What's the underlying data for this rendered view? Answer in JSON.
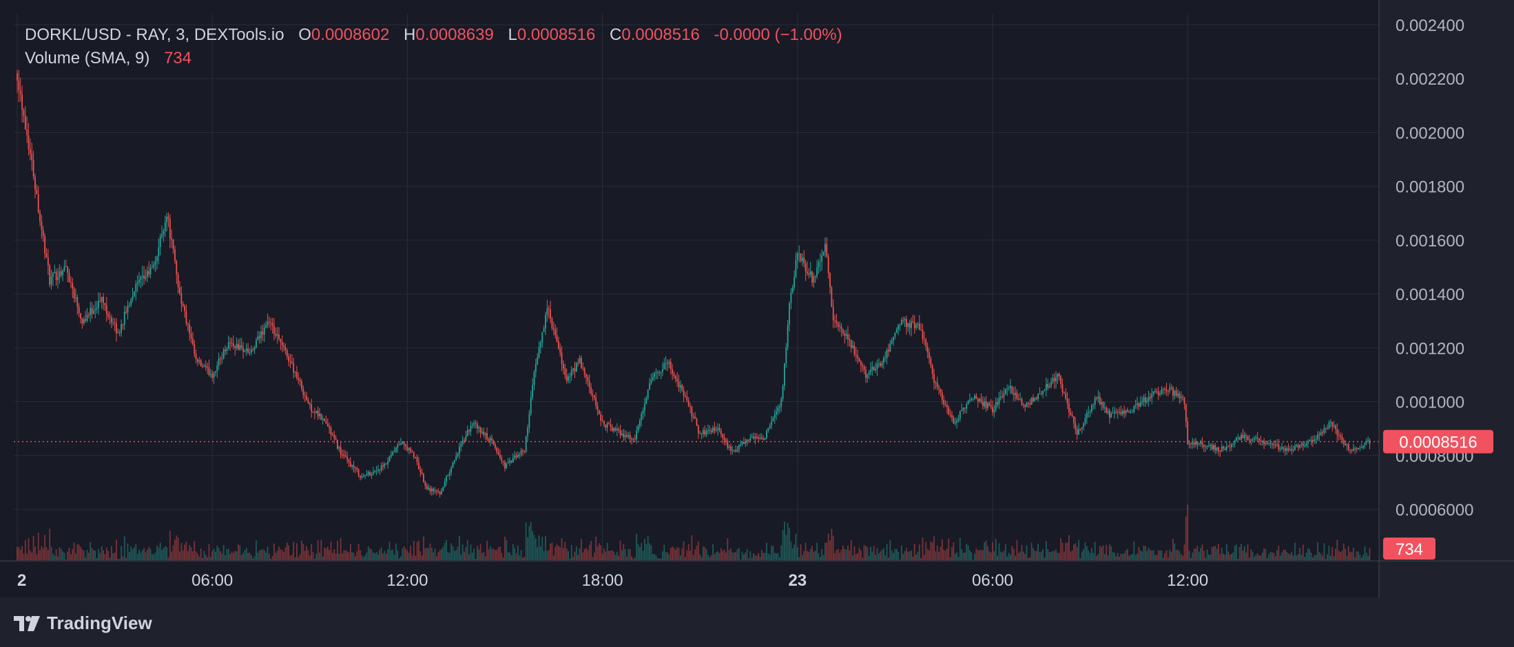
{
  "legend": {
    "symbol": "DORKL/USD - RAY, 3, DEXTools.io",
    "open_label": "O",
    "open": "0.0008602",
    "high_label": "H",
    "high": "0.0008639",
    "low_label": "L",
    "low": "0.0008516",
    "close_label": "C",
    "close": "0.0008516",
    "change": "-0.0000 (−1.00%)",
    "volume_label": "Volume (SMA, 9)",
    "volume_value": "734"
  },
  "branding": {
    "name": "TradingView"
  },
  "colors": {
    "background": "#1f222c",
    "plot_background": "#181a25",
    "up": "#26a69a",
    "down": "#ef5350",
    "grid": "#2a2e39",
    "text": "#d1d4dc",
    "accent": "#f2525f"
  },
  "chart_data": {
    "type": "candlestick",
    "title": "DORKL/USD - RAY, 3, DEXTools.io",
    "ylim": [
      0.0004,
      0.0025
    ],
    "y_ticks": [
      "0.002400",
      "0.002200",
      "0.002000",
      "0.001800",
      "0.001600",
      "0.001400",
      "0.001200",
      "0.001000",
      "0.0008000",
      "0.0006000"
    ],
    "y_tick_values": [
      0.0024,
      0.0022,
      0.002,
      0.0018,
      0.0016,
      0.0014,
      0.0012,
      0.001,
      0.0008,
      0.0006
    ],
    "x_ticks": [
      {
        "label": "2",
        "hours": 0,
        "bold": true
      },
      {
        "label": "06:00",
        "hours": 6
      },
      {
        "label": "12:00",
        "hours": 12
      },
      {
        "label": "18:00",
        "hours": 18
      },
      {
        "label": "23",
        "hours": 24,
        "bold": true
      },
      {
        "label": "06:00",
        "hours": 30
      },
      {
        "label": "12:00",
        "hours": 36
      }
    ],
    "last_price": 0.0008516,
    "last_price_label": "0.0008516",
    "last_volume_label": "734",
    "series_keyframes_hours": [
      0,
      0.1,
      0.5,
      0.7,
      1.0,
      1.5,
      2.0,
      2.6,
      3.1,
      3.6,
      4.2,
      4.6,
      5.0,
      5.5,
      6.0,
      6.5,
      7.2,
      7.7,
      8.4,
      9.0,
      9.5,
      10.0,
      10.6,
      11.3,
      11.8,
      12.2,
      12.6,
      13.0,
      13.5,
      14.0,
      14.6,
      15.0,
      15.6,
      15.9,
      16.3,
      16.9,
      17.3,
      18.0,
      18.6,
      19.0,
      19.5,
      20.0,
      20.6,
      21.0,
      21.5,
      22.0,
      22.5,
      23.0,
      23.5,
      23.75,
      24.0,
      24.5,
      24.85,
      25.1,
      25.6,
      26.1,
      26.6,
      27.2,
      27.8,
      28.2,
      28.8,
      29.4,
      30.0,
      30.5,
      31.0,
      31.6,
      32.0,
      32.6,
      33.2,
      33.6,
      34.2,
      34.8,
      35.4,
      35.9,
      36.0,
      36.3,
      37.0,
      37.7,
      38.4,
      39.0,
      39.8,
      40.4,
      41.0,
      41.6
    ],
    "series_keyframes_price": [
      0.00222,
      0.00214,
      0.00185,
      0.00168,
      0.00145,
      0.0015,
      0.0013,
      0.00138,
      0.00125,
      0.00142,
      0.0015,
      0.0017,
      0.0014,
      0.00115,
      0.0011,
      0.00122,
      0.00118,
      0.0013,
      0.00115,
      0.00098,
      0.00092,
      0.0008,
      0.00072,
      0.00076,
      0.00085,
      0.0008,
      0.00068,
      0.00066,
      0.0008,
      0.00092,
      0.00085,
      0.00076,
      0.00082,
      0.0011,
      0.00135,
      0.00108,
      0.00115,
      0.00092,
      0.00088,
      0.00086,
      0.00108,
      0.00115,
      0.001,
      0.00088,
      0.0009,
      0.00081,
      0.00086,
      0.00087,
      0.001,
      0.00135,
      0.00155,
      0.00145,
      0.00158,
      0.0013,
      0.00122,
      0.0011,
      0.00115,
      0.0013,
      0.00127,
      0.00108,
      0.00092,
      0.00102,
      0.00097,
      0.00106,
      0.00098,
      0.00105,
      0.0011,
      0.00088,
      0.00102,
      0.00095,
      0.00096,
      0.00102,
      0.00105,
      0.001,
      0.00085,
      0.00085,
      0.00082,
      0.00087,
      0.00085,
      0.00082,
      0.00085,
      0.00092,
      0.00082,
      0.00085
    ],
    "candle_interval_minutes": 3,
    "volume_scale_max": 1200
  }
}
